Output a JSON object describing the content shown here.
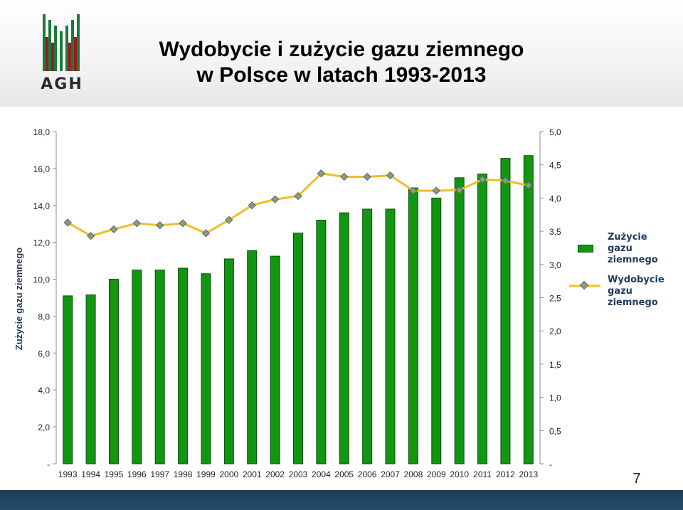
{
  "header": {
    "logo_text": "AGH",
    "title_line1": "Wydobycie i zużycie gazu ziemnego",
    "title_line2": "w Polsce w latach 1993-2013"
  },
  "page_number": "7",
  "colors": {
    "bar": "#129612",
    "bar_border": "#0b4d0b",
    "line": "#f0bf26",
    "marker": "#8a9a8a",
    "logo_green": "#1a7a3c",
    "logo_red": "#9b1b1f",
    "footer": "#1c3b55"
  },
  "chart_data": {
    "type": "bar",
    "categories": [
      "1993",
      "1994",
      "1995",
      "1996",
      "1997",
      "1998",
      "1999",
      "2000",
      "2001",
      "2002",
      "2003",
      "2004",
      "2005",
      "2006",
      "2007",
      "2008",
      "2009",
      "2010",
      "2011",
      "2012",
      "2013"
    ],
    "series": [
      {
        "name": "Zużycie gazu ziemnego",
        "type": "bar",
        "axis": "left",
        "values": [
          9.1,
          9.15,
          10.0,
          10.5,
          10.5,
          10.6,
          10.3,
          11.1,
          11.55,
          11.25,
          12.5,
          13.2,
          13.6,
          13.8,
          13.8,
          14.95,
          14.4,
          15.5,
          15.7,
          16.55,
          16.7
        ]
      },
      {
        "name": "Wydobycie gazu ziemnego",
        "type": "line",
        "axis": "right",
        "values": [
          3.63,
          3.43,
          3.53,
          3.62,
          3.59,
          3.62,
          3.47,
          3.67,
          3.89,
          3.98,
          4.03,
          4.37,
          4.32,
          4.32,
          4.34,
          4.11,
          4.11,
          4.12,
          4.28,
          4.26,
          4.19
        ]
      }
    ],
    "ylabel": "Zużycie gazu ziemnego",
    "y_left": {
      "min": 0,
      "max": 18,
      "ticks": [
        "-",
        "2,0",
        "4,0",
        "6,0",
        "8,0",
        "10,0",
        "12,0",
        "14,0",
        "16,0",
        "18,0"
      ]
    },
    "y_right": {
      "min": 0,
      "max": 5,
      "ticks": [
        "-",
        "0,5",
        "1,0",
        "1,5",
        "2,0",
        "2,5",
        "3,0",
        "3,5",
        "4,0",
        "4,5",
        "5,0"
      ]
    },
    "grid": false,
    "legend_placement": "right",
    "legend": [
      {
        "label": "Zużycie\ngazu ziemnego",
        "kind": "bar"
      },
      {
        "label": "Wydobycie\ngazu ziemnego",
        "kind": "line"
      }
    ]
  }
}
